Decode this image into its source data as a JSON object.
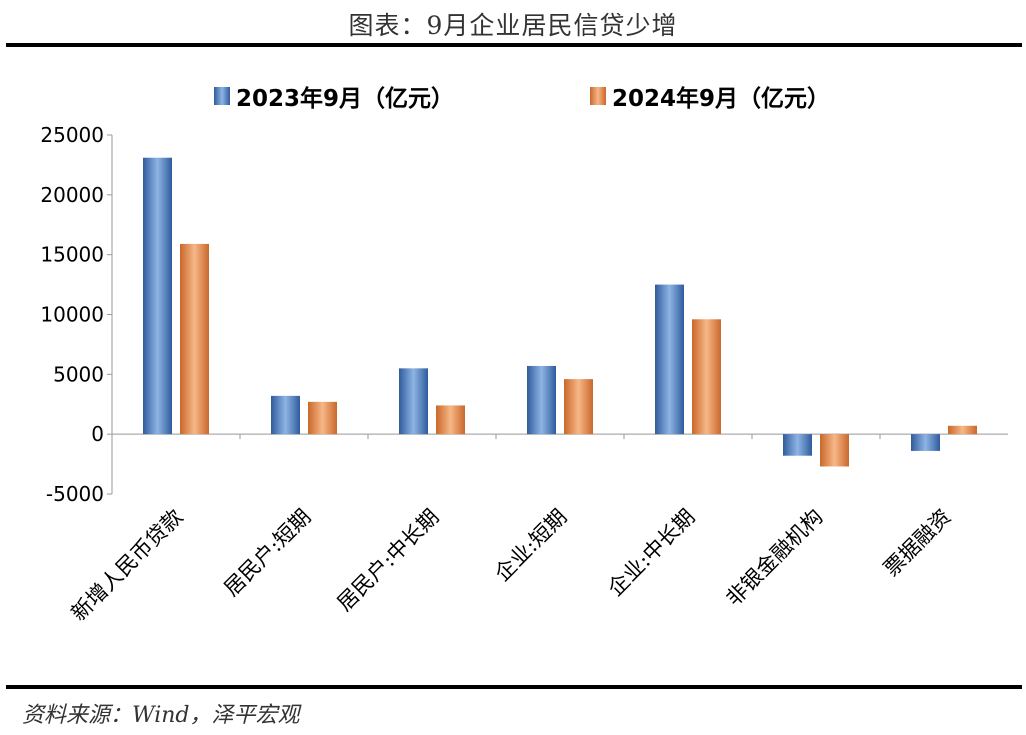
{
  "title": "图表：9月企业居民信贷少增",
  "source": "资料来源：Wind，泽平宏观",
  "colors": {
    "series_2023": "#4f7ec4",
    "series_2024": "#e38a46"
  },
  "chart_data": {
    "type": "bar",
    "categories": [
      "新增人民币贷款",
      "居民户:短期",
      "居民户:中长期",
      "企业:短期",
      "企业:中长期",
      "非银金融机构",
      "票据融资"
    ],
    "series": [
      {
        "name": "2023年9月（亿元）",
        "values": [
          23100,
          3200,
          5500,
          5700,
          12500,
          -1800,
          -1400
        ]
      },
      {
        "name": "2024年9月（亿元）",
        "values": [
          15900,
          2700,
          2400,
          4600,
          9600,
          -2700,
          700
        ]
      }
    ],
    "ylim": [
      -5000,
      25000
    ],
    "yticks": [
      "-5000",
      "0",
      "5000",
      "10000",
      "15000",
      "20000",
      "25000"
    ],
    "legend_position": "top",
    "grid": false
  }
}
